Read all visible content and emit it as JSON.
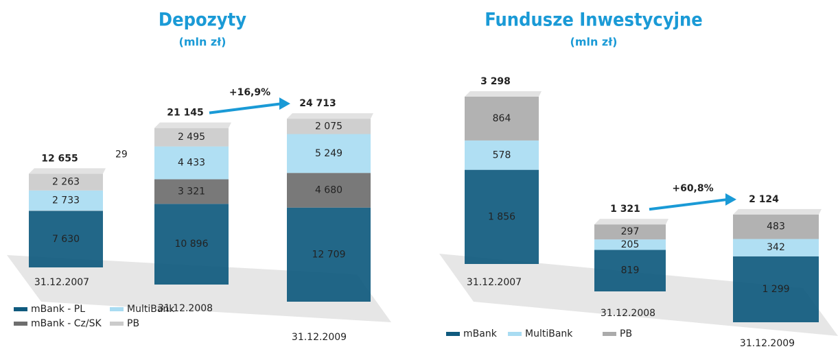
{
  "chart_data": [
    {
      "type": "bar",
      "stacked": true,
      "title": "Depozyty",
      "subtitle": "(mln zł)",
      "categories": [
        "31.12.2007",
        "31.12.2008",
        "31.12.2009"
      ],
      "series": [
        {
          "name": "mBank - PL",
          "color": "#0f5a7e",
          "values": [
            7630,
            10896,
            12709
          ],
          "value_labels": [
            "7 630",
            "10 896",
            "12 709"
          ]
        },
        {
          "name": "mBank - Cz/SK",
          "color": "#6e6e6e",
          "values": [
            29,
            3321,
            4680
          ],
          "value_labels": [
            "29",
            "3 321",
            "4 680"
          ]
        },
        {
          "name": "MultiBank",
          "color": "#a9dcf2",
          "values": [
            2733,
            4433,
            5249
          ],
          "value_labels": [
            "2 733",
            "4 433",
            "5 249"
          ]
        },
        {
          "name": "PB",
          "color": "#cbcbcb",
          "values": [
            2263,
            2495,
            2075
          ],
          "value_labels": [
            "2 263",
            "2 495",
            "2 075"
          ]
        }
      ],
      "totals": [
        12655,
        21145,
        24713
      ],
      "total_labels": [
        "12 655",
        "21 145",
        "24 713"
      ],
      "annotation": "+16,9%"
    },
    {
      "type": "bar",
      "stacked": true,
      "title": "Fundusze Inwestycyjne",
      "subtitle": "(mln zł)",
      "categories": [
        "31.12.2007",
        "31.12.2008",
        "31.12.2009"
      ],
      "series": [
        {
          "name": "mBank",
          "color": "#0f5a7e",
          "values": [
            1856,
            819,
            1299
          ],
          "value_labels": [
            "1 856",
            "819",
            "1 299"
          ]
        },
        {
          "name": "MultiBank",
          "color": "#a9dcf2",
          "values": [
            578,
            205,
            342
          ],
          "value_labels": [
            "578",
            "205",
            "342"
          ]
        },
        {
          "name": "PB",
          "color": "#ababab",
          "values": [
            864,
            297,
            483
          ],
          "value_labels": [
            "864",
            "297",
            "483"
          ]
        }
      ],
      "totals": [
        3298,
        1321,
        2124
      ],
      "total_labels": [
        "3 298",
        "1 321",
        "2 124"
      ],
      "annotation": "+60,8%"
    }
  ]
}
